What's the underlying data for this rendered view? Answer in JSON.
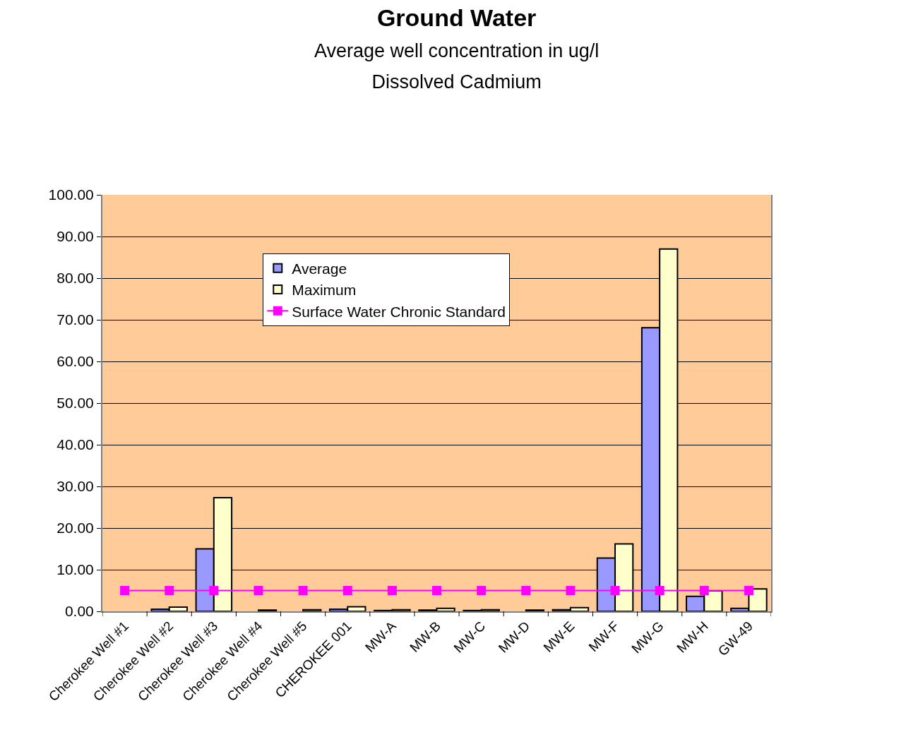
{
  "chart_data": {
    "type": "bar",
    "title": "Ground Water",
    "subtitle": "Average well concentration in ug/l\nDissolved Cadmium",
    "categories": [
      "Cherokee Well #1",
      "Cherokee Well #2",
      "Cherokee Well #3",
      "Cherokee Well #4",
      "Cherokee Well #5",
      "CHEROKEE 001",
      "MW-A",
      "MW-B",
      "MW-C",
      "MW-D",
      "MW-E",
      "MW-F",
      "MW-G",
      "MW-H",
      "GW-49"
    ],
    "series": [
      {
        "name": "Average",
        "color": "#9999ff",
        "values": [
          null,
          0.5,
          15.0,
          null,
          null,
          0.5,
          0.2,
          0.3,
          0.2,
          null,
          0.4,
          12.8,
          68.1,
          3.6,
          0.7
        ]
      },
      {
        "name": "Maximum",
        "color": "#ffffcc",
        "values": [
          null,
          1.0,
          27.3,
          0.3,
          0.4,
          1.1,
          0.4,
          0.7,
          0.4,
          0.3,
          0.9,
          16.2,
          87.0,
          4.9,
          5.4
        ]
      },
      {
        "name": "Surface Water Chronic Standard",
        "type": "line",
        "color": "#ff00ff",
        "values": [
          5,
          5,
          5,
          5,
          5,
          5,
          5,
          5,
          5,
          5,
          5,
          5,
          5,
          5,
          5
        ]
      }
    ],
    "ylim": [
      0,
      100
    ],
    "yticks": [
      {
        "value": 0,
        "label": "0.00"
      },
      {
        "value": 10,
        "label": "10.00"
      },
      {
        "value": 20,
        "label": "20.00"
      },
      {
        "value": 30,
        "label": "30.00"
      },
      {
        "value": 40,
        "label": "40.00"
      },
      {
        "value": 50,
        "label": "50.00"
      },
      {
        "value": 60,
        "label": "60.00"
      },
      {
        "value": 70,
        "label": "70.00"
      },
      {
        "value": 80,
        "label": "80.00"
      },
      {
        "value": 90,
        "label": "90.00"
      },
      {
        "value": 100,
        "label": "100.00"
      }
    ],
    "grid": "y",
    "legend": "top",
    "marker": "square"
  }
}
